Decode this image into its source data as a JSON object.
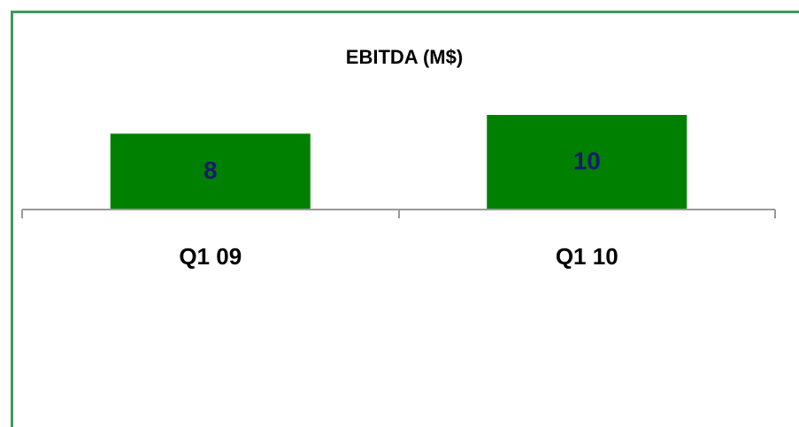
{
  "chart_data": {
    "type": "bar",
    "title": "EBITDA (M$)",
    "categories": [
      "Q1 09",
      "Q1 10"
    ],
    "values": [
      8,
      10
    ],
    "color": "#008000",
    "label_color": "#1a1a6e"
  }
}
